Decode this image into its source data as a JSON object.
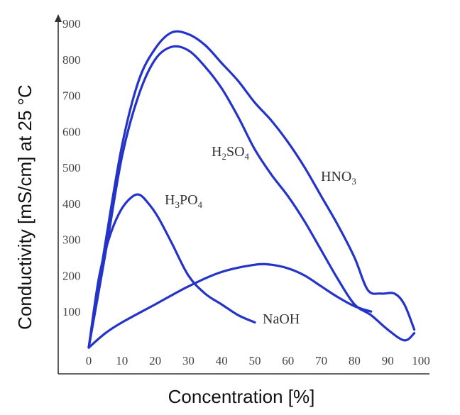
{
  "chart_data": {
    "type": "line",
    "xlabel": "Concentration [%]",
    "ylabel": "Conductivity [mS/cm] at 25 °C",
    "xlim": [
      0,
      100
    ],
    "ylim": [
      0,
      900
    ],
    "xticks": [
      0,
      10,
      20,
      30,
      40,
      50,
      60,
      70,
      80,
      90,
      100
    ],
    "yticks": [
      100,
      200,
      300,
      400,
      500,
      600,
      700,
      800,
      900
    ],
    "line_color": "#2433c8",
    "grid": false,
    "series": [
      {
        "name": "HNO3",
        "label_main": "HNO",
        "label_sub": "3",
        "label_tail": "",
        "x": [
          0,
          5,
          10,
          15,
          20,
          25,
          30,
          35,
          40,
          45,
          50,
          55,
          60,
          65,
          70,
          75,
          80,
          84,
          88,
          92,
          95,
          98
        ],
        "y": [
          0,
          290,
          560,
          740,
          830,
          875,
          870,
          840,
          790,
          740,
          680,
          630,
          570,
          500,
          420,
          340,
          250,
          160,
          150,
          150,
          120,
          50
        ]
      },
      {
        "name": "H2SO4",
        "label_main": "H",
        "label_sub": "2",
        "label_tail": "SO",
        "label_sub2": "4",
        "x": [
          0,
          5,
          10,
          15,
          20,
          25,
          30,
          35,
          40,
          45,
          50,
          55,
          60,
          65,
          70,
          75,
          80,
          85,
          90,
          95,
          98
        ],
        "y": [
          0,
          260,
          530,
          700,
          800,
          835,
          825,
          780,
          720,
          640,
          550,
          480,
          420,
          350,
          270,
          190,
          120,
          90,
          50,
          20,
          40
        ]
      },
      {
        "name": "H3PO4",
        "label_main": "H",
        "label_sub": "3",
        "label_tail": "PO",
        "label_sub2": "4",
        "x": [
          0,
          3,
          6,
          9,
          12,
          15,
          18,
          21,
          25,
          30,
          35,
          40,
          45,
          50
        ],
        "y": [
          0,
          190,
          300,
          370,
          410,
          425,
          400,
          360,
          290,
          200,
          150,
          120,
          90,
          70
        ]
      },
      {
        "name": "NaOH",
        "label_main": "NaOH",
        "label_sub": "",
        "label_tail": "",
        "x": [
          0,
          5,
          10,
          20,
          30,
          40,
          50,
          55,
          60,
          65,
          70,
          75,
          80,
          85
        ],
        "y": [
          0,
          40,
          70,
          120,
          170,
          210,
          230,
          230,
          220,
          200,
          170,
          140,
          115,
          100
        ]
      }
    ]
  }
}
